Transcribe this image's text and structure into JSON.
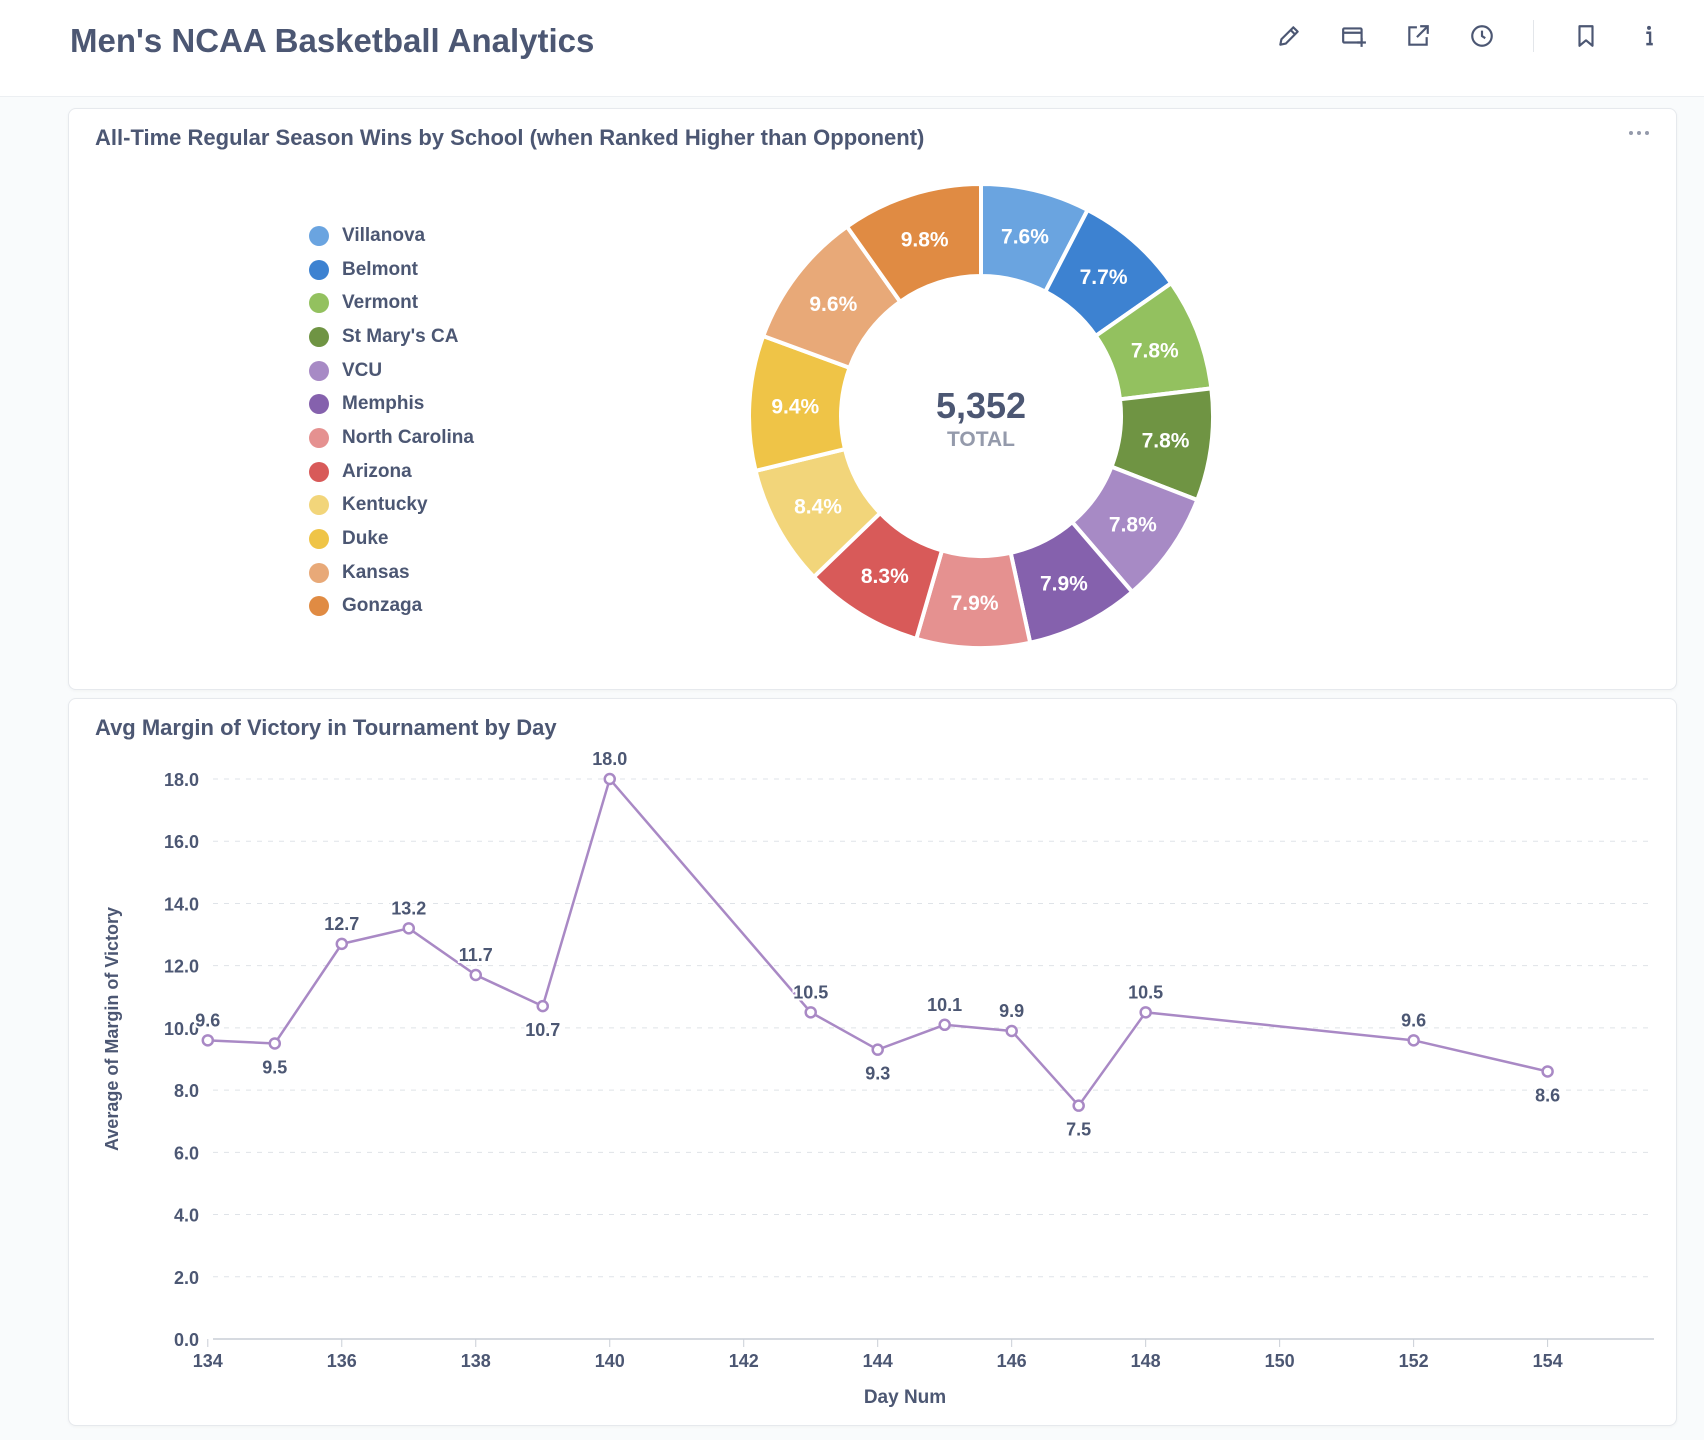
{
  "header": {
    "title": "Men's NCAA Basketball  Analytics",
    "icons": [
      "pencil-icon",
      "add-to-dashboard-icon",
      "share-icon",
      "clock-icon",
      "bookmark-icon",
      "info-icon"
    ]
  },
  "colors": {
    "line": "#a989c5",
    "grid": "#dfe3e8",
    "text": "#4c5773",
    "muted": "#949aab"
  },
  "donut_card": {
    "title": "All-Time Regular Season Wins by School (when Ranked Higher than Opponent)",
    "total_value": "5,352",
    "total_label": "TOTAL"
  },
  "line_card": {
    "title": "Avg Margin of Victory in Tournament by Day"
  },
  "chart_data": [
    {
      "type": "pie",
      "title": "All-Time Regular Season Wins by School (when Ranked Higher than Opponent)",
      "legend_position": "left",
      "categories": [
        "Villanova",
        "Belmont",
        "Vermont",
        "St Mary's CA",
        "VCU",
        "Memphis",
        "North Carolina",
        "Arizona",
        "Kentucky",
        "Duke",
        "Kansas",
        "Gonzaga"
      ],
      "values": [
        7.6,
        7.7,
        7.8,
        7.8,
        7.8,
        7.9,
        7.9,
        8.3,
        8.4,
        9.4,
        9.6,
        9.8
      ],
      "labels": [
        "7.6%",
        "7.7%",
        "7.8%",
        "7.8%",
        "7.8%",
        "7.9%",
        "7.9%",
        "8.3%",
        "8.4%",
        "9.4%",
        "9.6%",
        "9.8%"
      ],
      "colors": [
        "#6aa4e0",
        "#3d82d1",
        "#93c15f",
        "#6f9443",
        "#a78ac5",
        "#8561ad",
        "#e59190",
        "#d85a59",
        "#f2d57a",
        "#efc447",
        "#e8a978",
        "#e08b43"
      ],
      "total": "5,352",
      "total_label": "TOTAL"
    },
    {
      "type": "line",
      "title": "Avg Margin of Victory in Tournament by Day",
      "xlabel": "Day Num",
      "ylabel": "Average of Margin of Victory",
      "x": [
        134,
        135,
        136,
        137,
        138,
        139,
        140,
        143,
        144,
        145,
        146,
        147,
        148,
        152,
        154
      ],
      "y": [
        9.6,
        9.5,
        12.7,
        13.2,
        11.7,
        10.7,
        18.0,
        10.5,
        9.3,
        10.1,
        9.9,
        7.5,
        10.5,
        9.6,
        8.6
      ],
      "labels": [
        "9.6",
        "9.5",
        "12.7",
        "13.2",
        "11.7",
        "10.7",
        "18.0",
        "10.5",
        "9.3",
        "10.1",
        "9.9",
        "7.5",
        "10.5",
        "9.6",
        "8.6"
      ],
      "xlim": [
        133.6,
        155.2
      ],
      "ylim": [
        0,
        18
      ],
      "xticks": [
        "134",
        "136",
        "138",
        "140",
        "142",
        "144",
        "146",
        "148",
        "150",
        "152",
        "154"
      ],
      "yticks": [
        "0.0",
        "2.0",
        "4.0",
        "6.0",
        "8.0",
        "10.0",
        "12.0",
        "14.0",
        "16.0",
        "18.0"
      ],
      "grid": true
    }
  ]
}
